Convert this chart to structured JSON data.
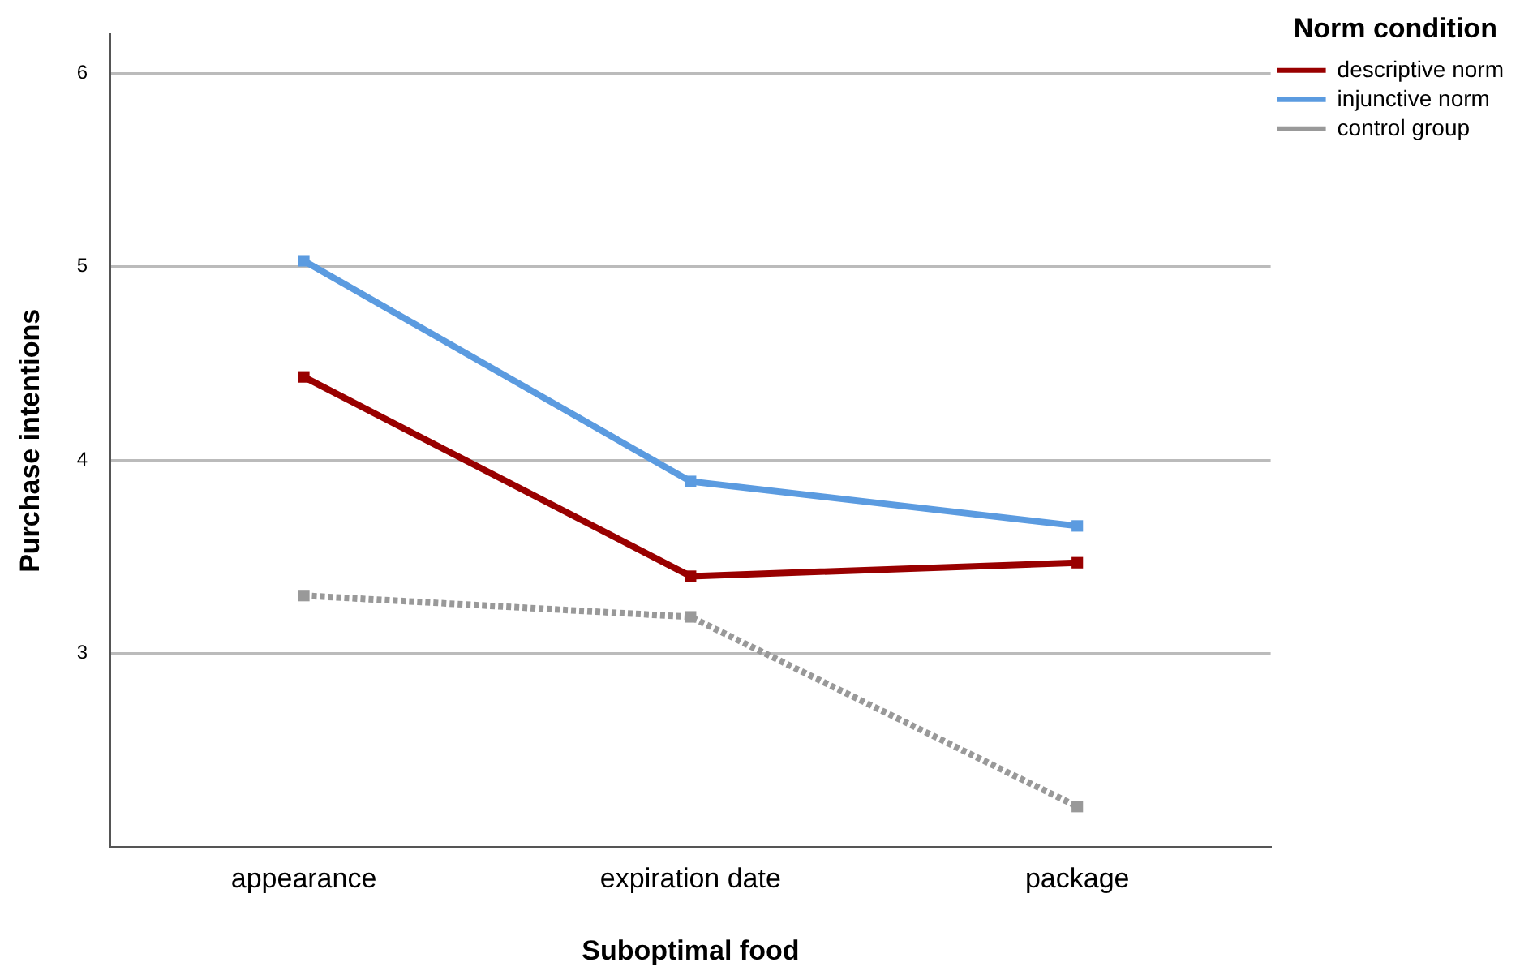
{
  "chart_data": {
    "type": "line",
    "xlabel": "Suboptimal food",
    "ylabel": "Purchase intentions",
    "legend_title": "Norm condition",
    "categories": [
      "appearance",
      "expiration date",
      "package"
    ],
    "series": [
      {
        "name": "descriptive norm",
        "color": "#990000",
        "values": [
          4.43,
          3.4,
          3.47
        ]
      },
      {
        "name": "injunctive norm",
        "color": "#5b9be0",
        "values": [
          5.03,
          3.89,
          3.66
        ]
      },
      {
        "name": "control group",
        "color": "#999999",
        "values": [
          3.3,
          3.19,
          2.21
        ],
        "line_style": "dotted"
      }
    ],
    "ylim": [
      2,
      6.2
    ],
    "yticks": [
      3,
      4,
      5,
      6
    ],
    "grid": "y",
    "legend": "top right",
    "marker": "square",
    "line_style": "solid"
  }
}
